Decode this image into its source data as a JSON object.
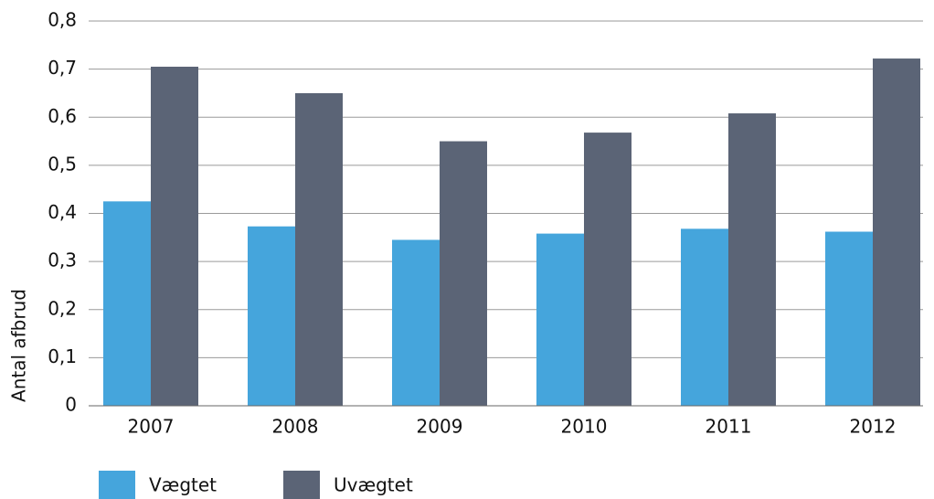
{
  "chart_data": {
    "type": "bar",
    "y_label": "Antal afbrud",
    "categories": [
      "2007",
      "2008",
      "2009",
      "2010",
      "2011",
      "2012"
    ],
    "series": [
      {
        "name": "Vægtet",
        "color": "#45a5dc",
        "values": [
          0.425,
          0.373,
          0.345,
          0.358,
          0.368,
          0.362
        ]
      },
      {
        "name": "Uvægtet",
        "color": "#5b6476",
        "values": [
          0.705,
          0.65,
          0.55,
          0.568,
          0.608,
          0.722
        ]
      }
    ],
    "ylim": [
      0,
      0.8
    ],
    "yticks": [
      0,
      {
        "value": 0.1,
        "label": "0,1"
      },
      {
        "value": 0.2,
        "label": "0,2"
      },
      {
        "value": 0.3,
        "label": "0,3"
      },
      {
        "value": 0.4,
        "label": "0,4"
      },
      {
        "value": 0.5,
        "label": "0,5"
      },
      {
        "value": 0.6,
        "label": "0,6"
      },
      {
        "value": 0.7,
        "label": "0,7"
      },
      {
        "value": 0.8,
        "label": "0,8"
      }
    ],
    "grid": true,
    "legend": "bottom-left"
  }
}
